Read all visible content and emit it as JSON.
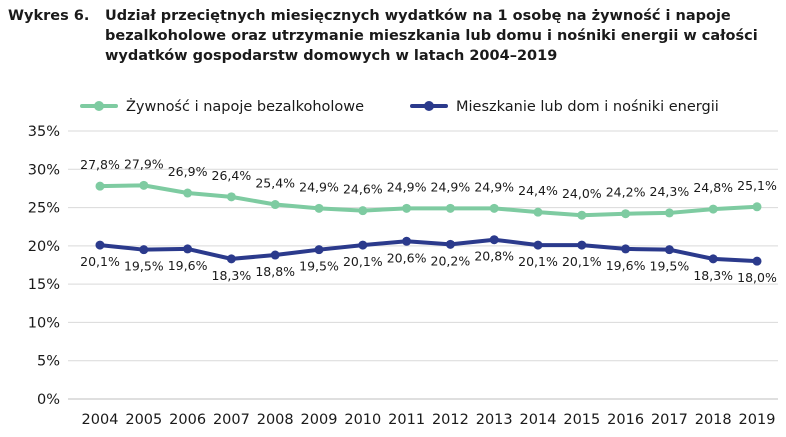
{
  "chart_data": {
    "type": "line",
    "title_prefix": "Wykres 6.",
    "title_lines": [
      "Udział przeciętnych miesięcznych wydatków na 1 osobę na żywność i napoje",
      "bezalkoholowe oraz utrzymanie mieszkania lub domu i nośniki energii w całości",
      "wydatków gospodarstw domowych w latach 2004–2019"
    ],
    "x": [
      "2004",
      "2005",
      "2006",
      "2007",
      "2008",
      "2009",
      "2010",
      "2011",
      "2012",
      "2013",
      "2014",
      "2015",
      "2016",
      "2017",
      "2018",
      "2019"
    ],
    "ylim": [
      0,
      35
    ],
    "yticks": [
      "0%",
      "5%",
      "10%",
      "15%",
      "20%",
      "25%",
      "30%",
      "35%"
    ],
    "ytick_values": [
      0,
      5,
      10,
      15,
      20,
      25,
      30,
      35
    ],
    "legend_position": "top",
    "series": [
      {
        "name": "Żywność i napoje bezalkoholowe",
        "color": "#7ecba1",
        "values": [
          27.8,
          27.9,
          26.9,
          26.4,
          25.4,
          24.9,
          24.6,
          24.9,
          24.9,
          24.9,
          24.4,
          24.0,
          24.2,
          24.3,
          24.8,
          25.1
        ],
        "labels": [
          "27,8%",
          "27,9%",
          "26,9%",
          "26,4%",
          "25,4%",
          "24,9%",
          "24,6%",
          "24,9%",
          "24,9%",
          "24,9%",
          "24,4%",
          "24,0%",
          "24,2%",
          "24,3%",
          "24,8%",
          "25,1%"
        ]
      },
      {
        "name": "Mieszkanie lub dom i nośniki energii",
        "color": "#2b3a8c",
        "values": [
          20.1,
          19.5,
          19.6,
          18.3,
          18.8,
          19.5,
          20.1,
          20.6,
          20.2,
          20.8,
          20.1,
          20.1,
          19.6,
          19.5,
          18.3,
          18.0
        ],
        "labels": [
          "20,1%",
          "19,5%",
          "19,6%",
          "18,3%",
          "18,8%",
          "19,5%",
          "20,1%",
          "20,6%",
          "20,2%",
          "20,8%",
          "20,1%",
          "20,1%",
          "19,6%",
          "19,5%",
          "18,3%",
          "18,0%"
        ]
      }
    ]
  }
}
